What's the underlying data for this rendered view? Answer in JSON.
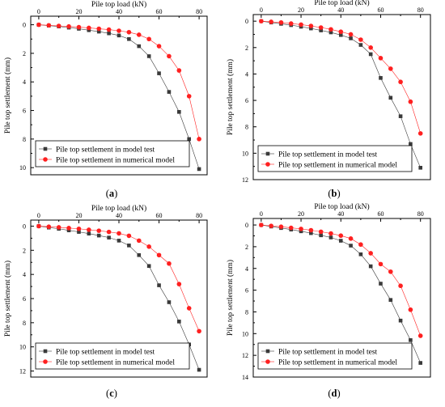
{
  "figure": {
    "panel_labels": [
      "(a)",
      "(b)",
      "(c)",
      "(d)"
    ]
  },
  "colors": {
    "model_test": "#3a3a3a",
    "numerical_model": "#ff2020",
    "axis": "#000000"
  },
  "chart_data": [
    {
      "type": "line",
      "panel": "(a)",
      "xlabel": "Pile top load (kN)",
      "ylabel": "Pile top settlement (mm)",
      "x_axis_position": "top",
      "y_axis_inverted": true,
      "xlim": [
        -4,
        84
      ],
      "ylim": [
        -0.6,
        10.5
      ],
      "x_ticks": [
        0,
        20,
        40,
        60,
        80
      ],
      "y_ticks": [
        0,
        2,
        4,
        6,
        8,
        10
      ],
      "x": [
        0,
        5,
        10,
        15,
        20,
        25,
        30,
        35,
        40,
        45,
        50,
        55,
        60,
        65,
        70,
        75,
        80
      ],
      "series": [
        {
          "name": "Pile top settlement in model test",
          "marker": "square",
          "values": [
            0.0,
            0.06,
            0.12,
            0.2,
            0.28,
            0.38,
            0.48,
            0.6,
            0.75,
            1.0,
            1.5,
            2.2,
            3.4,
            4.7,
            6.1,
            8.0,
            10.1
          ]
        },
        {
          "name": "Pile top settlement in numerical model",
          "marker": "circle",
          "values": [
            0.0,
            0.04,
            0.08,
            0.12,
            0.17,
            0.22,
            0.28,
            0.34,
            0.42,
            0.52,
            0.7,
            1.0,
            1.5,
            2.2,
            3.2,
            5.0,
            8.0
          ]
        }
      ],
      "legend": "lower-left"
    },
    {
      "type": "line",
      "panel": "(b)",
      "xlabel": "Pile top load (kN)",
      "ylabel": "Pile top settlement (mm)",
      "x_axis_position": "top",
      "y_axis_inverted": true,
      "xlim": [
        -4,
        85
      ],
      "ylim": [
        -0.5,
        12
      ],
      "x_ticks": [
        0,
        20,
        40,
        60,
        80
      ],
      "y_ticks": [
        0,
        2,
        4,
        6,
        8,
        10,
        12
      ],
      "x": [
        0,
        5,
        10,
        15,
        20,
        25,
        30,
        35,
        40,
        45,
        50,
        55,
        60,
        65,
        70,
        75,
        80
      ],
      "series": [
        {
          "name": "Pile top settlement in model test",
          "marker": "square",
          "values": [
            0.0,
            0.1,
            0.2,
            0.3,
            0.42,
            0.55,
            0.7,
            0.85,
            1.05,
            1.3,
            1.8,
            2.5,
            4.3,
            5.8,
            7.2,
            9.3,
            11.1
          ]
        },
        {
          "name": "Pile top settlement in numerical model",
          "marker": "circle",
          "values": [
            0.0,
            0.05,
            0.1,
            0.18,
            0.26,
            0.36,
            0.48,
            0.62,
            0.8,
            1.0,
            1.4,
            2.0,
            2.8,
            3.6,
            4.6,
            6.1,
            8.5
          ]
        }
      ],
      "legend": "lower-left"
    },
    {
      "type": "line",
      "panel": "(c)",
      "xlabel": "Pile top load (kN)",
      "ylabel": "Pile top settlement (mm)",
      "x_axis_position": "top",
      "y_axis_inverted": true,
      "xlim": [
        -4,
        84
      ],
      "ylim": [
        -0.5,
        12.5
      ],
      "x_ticks": [
        0,
        20,
        40,
        60,
        80
      ],
      "y_ticks": [
        0,
        2,
        4,
        6,
        8,
        10,
        12
      ],
      "x": [
        0,
        5,
        10,
        15,
        20,
        25,
        30,
        35,
        40,
        45,
        50,
        55,
        60,
        65,
        70,
        75,
        80
      ],
      "series": [
        {
          "name": "Pile top settlement in model test",
          "marker": "square",
          "values": [
            0.0,
            0.12,
            0.22,
            0.35,
            0.48,
            0.62,
            0.78,
            0.95,
            1.2,
            1.6,
            2.4,
            3.3,
            4.9,
            6.3,
            7.9,
            9.8,
            11.9
          ]
        },
        {
          "name": "Pile top settlement in numerical model",
          "marker": "circle",
          "values": [
            0.0,
            0.05,
            0.1,
            0.16,
            0.22,
            0.3,
            0.38,
            0.48,
            0.6,
            0.8,
            1.2,
            1.7,
            2.4,
            3.1,
            4.8,
            6.8,
            8.7
          ]
        }
      ],
      "legend": "lower-left"
    },
    {
      "type": "line",
      "panel": "(d)",
      "xlabel": "Pile top load (kN)",
      "ylabel": "Pile top settlement (mm)",
      "x_axis_position": "top",
      "y_axis_inverted": true,
      "xlim": [
        -4,
        85
      ],
      "ylim": [
        -0.6,
        14
      ],
      "x_ticks": [
        0,
        20,
        40,
        60,
        80
      ],
      "y_ticks": [
        0,
        2,
        4,
        6,
        8,
        10,
        12,
        14
      ],
      "x": [
        0,
        5,
        10,
        15,
        20,
        25,
        30,
        35,
        40,
        45,
        50,
        55,
        60,
        65,
        70,
        75,
        80
      ],
      "series": [
        {
          "name": "Pile top settlement in model test",
          "marker": "square",
          "values": [
            0.0,
            0.14,
            0.28,
            0.42,
            0.58,
            0.75,
            0.95,
            1.15,
            1.45,
            1.9,
            2.7,
            3.8,
            5.4,
            6.9,
            8.8,
            10.6,
            12.7
          ]
        },
        {
          "name": "Pile top settlement in numerical model",
          "marker": "circle",
          "values": [
            0.0,
            0.08,
            0.16,
            0.26,
            0.36,
            0.48,
            0.62,
            0.78,
            0.98,
            1.25,
            1.8,
            2.6,
            3.6,
            4.3,
            5.6,
            7.8,
            10.2
          ]
        }
      ],
      "legend": "lower-left"
    }
  ]
}
